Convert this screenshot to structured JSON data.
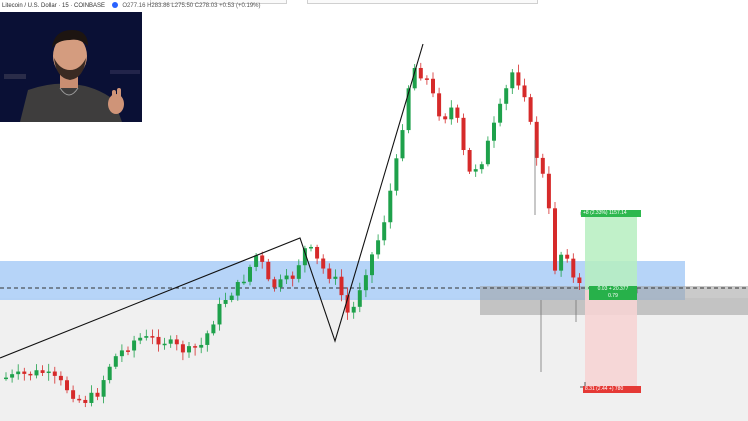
{
  "legend": {
    "symbol": "Litecoin / U.S. Dollar · 15 · COINBASE",
    "ohlc": "O277.16 H283.86 L275.50 C278.03 +0.53 (+0.19%)"
  },
  "colors": {
    "up": "#1ea14b",
    "down": "#d62a2a",
    "zone_blue": "#a9cdf7",
    "target_green": "#b6efc0",
    "stop_red": "#f6d4d4",
    "gray_box": "#bfbfbf",
    "trendline": "#111111"
  },
  "trade": {
    "profit_label": "+8 (2.33%) 1157.14",
    "entry_line1": "0.03 + 20.377",
    "entry_line2": "0.79",
    "loss_label": "8.31 (2.44 +) 780"
  },
  "webcam": {
    "icon": "presenter-video"
  },
  "chart_data": {
    "type": "candlestick",
    "title": "Litecoin / U.S. Dollar · 15 · COINBASE",
    "candle_count": 95
  }
}
